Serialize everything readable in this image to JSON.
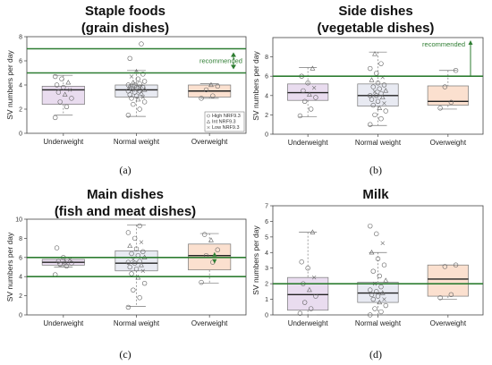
{
  "chart_data": [
    {
      "type": "box",
      "panel_label": "(a)",
      "title_lines": [
        "Staple foods",
        "(grain dishes)"
      ],
      "ylabel": "SV numbers per day",
      "ylim": [
        0,
        8
      ],
      "yticks": [
        0,
        2,
        4,
        6,
        8
      ],
      "categories": [
        "Underweight",
        "Normal weight",
        "Overweight"
      ],
      "fill_colors": [
        "#e9dcef",
        "#e8eaf2",
        "#fbe0cf"
      ],
      "boxes": [
        {
          "min": 1.5,
          "q1": 2.4,
          "median": 3.6,
          "q3": 3.9,
          "max": 4.8
        },
        {
          "min": 1.4,
          "q1": 3.0,
          "median": 3.6,
          "q3": 4.0,
          "max": 5.2
        },
        {
          "min": 2.9,
          "q1": 3.0,
          "median": 3.5,
          "q3": 4.0,
          "max": 4.1
        }
      ],
      "points": [
        [
          1.3,
          2.2,
          2.6,
          2.9,
          3.2,
          3.4,
          3.6,
          3.8,
          4.0,
          4.2,
          4.5,
          4.7
        ],
        [
          1.5,
          2.0,
          2.4,
          2.6,
          2.8,
          2.9,
          3.0,
          3.1,
          3.2,
          3.3,
          3.4,
          3.5,
          3.5,
          3.6,
          3.6,
          3.7,
          3.7,
          3.8,
          3.8,
          3.9,
          3.9,
          4.0,
          4.0,
          4.1,
          4.2,
          4.3,
          4.5,
          4.7,
          4.9,
          5.1,
          6.2,
          7.4
        ],
        [
          2.9,
          3.1,
          3.6,
          3.9,
          4.0
        ]
      ],
      "ref_lines": [
        5,
        7
      ],
      "annotation": "recommended",
      "arrow": "between",
      "legend": [
        "High NRF9.3",
        "Int NRF9.3",
        "Low NRF9.3"
      ]
    },
    {
      "type": "box",
      "panel_label": "(b)",
      "title_lines": [
        "Side dishes",
        "(vegetable dishes)"
      ],
      "ylabel": "SV numbers per day",
      "ylim": [
        0,
        10
      ],
      "yticks": [
        0,
        2,
        4,
        6,
        8
      ],
      "categories": [
        "Underweight",
        "Normal weight",
        "Overweight"
      ],
      "fill_colors": [
        "#e9dcef",
        "#e8eaf2",
        "#fbe0cf"
      ],
      "boxes": [
        {
          "min": 1.8,
          "q1": 3.5,
          "median": 4.3,
          "q3": 5.2,
          "max": 6.9
        },
        {
          "min": 0.9,
          "q1": 2.9,
          "median": 4.0,
          "q3": 5.2,
          "max": 8.5
        },
        {
          "min": 2.6,
          "q1": 3.0,
          "median": 3.4,
          "q3": 5.0,
          "max": 6.6
        }
      ],
      "points": [
        [
          1.9,
          2.6,
          3.4,
          3.8,
          4.1,
          4.5,
          4.8,
          5.3,
          6.0,
          6.8
        ],
        [
          1.0,
          1.6,
          2.0,
          2.4,
          2.7,
          3.0,
          3.2,
          3.4,
          3.6,
          3.8,
          4.0,
          4.0,
          4.2,
          4.4,
          4.5,
          4.7,
          4.9,
          5.1,
          5.3,
          5.6,
          5.9,
          6.3,
          6.8,
          7.3,
          8.3
        ],
        [
          2.7,
          3.3,
          4.9,
          6.6
        ]
      ],
      "ref_lines": [
        6
      ],
      "annotation": "recommended",
      "arrow": "up",
      "legend": []
    },
    {
      "type": "box",
      "panel_label": "(c)",
      "title_lines": [
        "Main dishes",
        "(fish and meat dishes)"
      ],
      "ylabel": "SV numbers per day",
      "ylim": [
        0,
        10
      ],
      "yticks": [
        0,
        2,
        4,
        6,
        8,
        10
      ],
      "categories": [
        "Underweight",
        "Normal weight",
        "Overweight"
      ],
      "fill_colors": [
        "#e9dcef",
        "#e8eaf2",
        "#fbe0cf"
      ],
      "boxes": [
        {
          "min": 5.0,
          "q1": 5.2,
          "median": 5.5,
          "q3": 5.8,
          "max": 6.0
        },
        {
          "min": 0.9,
          "q1": 4.6,
          "median": 5.4,
          "q3": 6.7,
          "max": 9.4
        },
        {
          "min": 3.3,
          "q1": 4.7,
          "median": 6.2,
          "q3": 7.4,
          "max": 8.5
        }
      ],
      "points": [
        [
          4.2,
          5.1,
          5.3,
          5.4,
          5.5,
          5.6,
          5.8,
          6.0,
          7.0
        ],
        [
          0.8,
          1.8,
          2.6,
          3.3,
          3.9,
          4.3,
          4.6,
          4.8,
          5.0,
          5.2,
          5.4,
          5.5,
          5.6,
          5.8,
          6.0,
          6.2,
          6.4,
          6.6,
          6.9,
          7.2,
          7.6,
          8.0,
          8.6,
          9.3
        ],
        [
          3.4,
          5.5,
          6.2,
          6.8,
          7.8,
          8.4
        ]
      ],
      "ref_lines": [
        4,
        6
      ],
      "annotation": "",
      "arrow": "c_arrows",
      "legend": []
    },
    {
      "type": "box",
      "panel_label": "(d)",
      "title_lines": [
        "Milk"
      ],
      "ylabel": "SV numbers per day",
      "ylim": [
        0,
        7
      ],
      "yticks": [
        0,
        1,
        2,
        3,
        4,
        5,
        6,
        7
      ],
      "categories": [
        "Underweight",
        "Normal weight",
        "Overweight"
      ],
      "fill_colors": [
        "#e9dcef",
        "#e8eaf2",
        "#fbe0cf"
      ],
      "boxes": [
        {
          "min": 0.0,
          "q1": 0.3,
          "median": 1.3,
          "q3": 2.4,
          "max": 5.3
        },
        {
          "min": 0.0,
          "q1": 0.8,
          "median": 1.4,
          "q3": 2.1,
          "max": 4.0
        },
        {
          "min": 1.0,
          "q1": 1.2,
          "median": 2.3,
          "q3": 3.2,
          "max": 3.2
        }
      ],
      "points": [
        [
          0.1,
          0.4,
          0.8,
          1.2,
          1.6,
          2.0,
          2.4,
          3.0,
          3.4,
          5.3
        ],
        [
          0.0,
          0.2,
          0.4,
          0.6,
          0.8,
          1.0,
          1.0,
          1.2,
          1.3,
          1.4,
          1.5,
          1.6,
          1.8,
          2.0,
          2.2,
          2.5,
          2.8,
          3.2,
          3.6,
          4.0,
          4.6,
          5.2,
          5.7
        ],
        [
          1.1,
          1.3,
          3.1,
          3.2
        ]
      ],
      "ref_lines": [
        2
      ],
      "annotation": "",
      "arrow": "none",
      "legend": []
    }
  ]
}
